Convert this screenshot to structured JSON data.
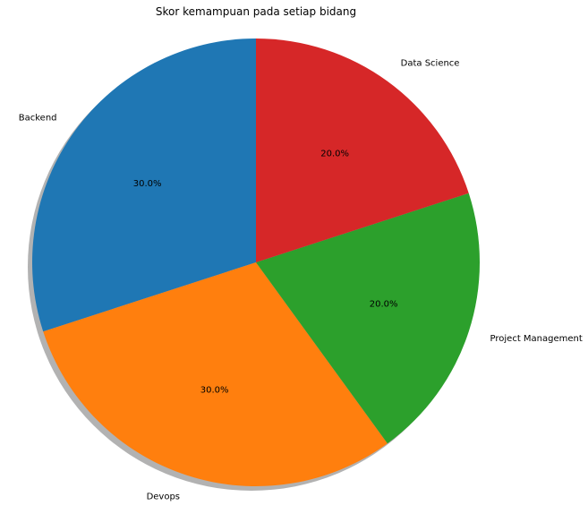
{
  "chart_data": {
    "type": "pie",
    "title": "Skor kemampuan pada setiap bidang",
    "categories": [
      "Backend",
      "Devops",
      "Project Management",
      "Data Science"
    ],
    "values": [
      30,
      30,
      20,
      20
    ],
    "percent_labels": [
      "30.0%",
      "30.0%",
      "20.0%",
      "20.0%"
    ],
    "colors": [
      "#1f77b4",
      "#ff7f0e",
      "#2ca02c",
      "#d62728"
    ],
    "start_angle_deg": 90,
    "direction": "counterclockwise",
    "shadow": true,
    "legend": "none"
  }
}
